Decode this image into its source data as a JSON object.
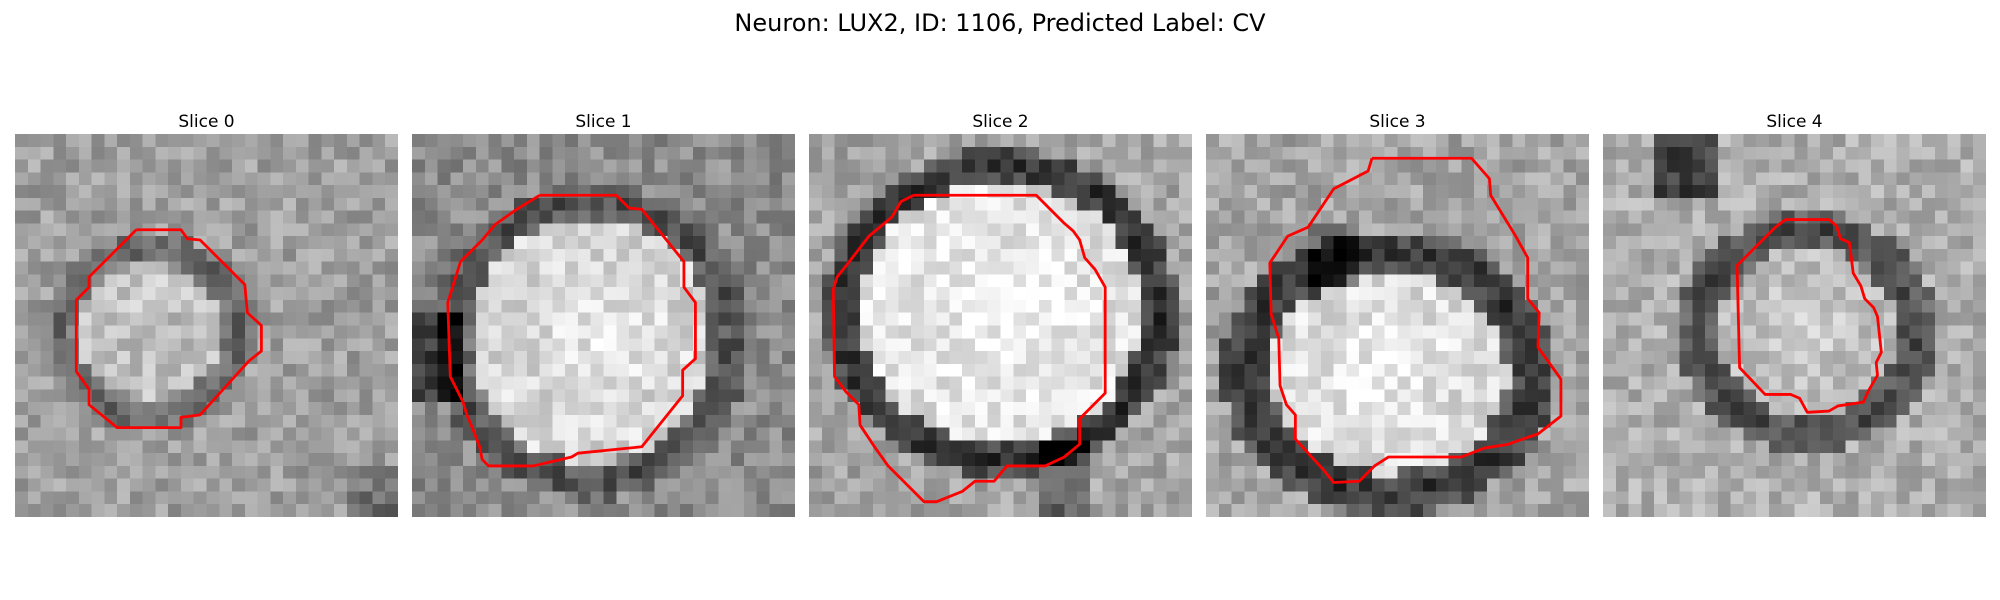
{
  "figure": {
    "title": "Neuron: LUX2, ID: 1106, Predicted Label: CV"
  },
  "panels": [
    {
      "title": "Slice 0",
      "seed": 11,
      "ring_shade": 95,
      "inner_shade": 190,
      "outer_shade": 160,
      "dark_corner": "bottom-right"
    },
    {
      "title": "Slice 1",
      "seed": 23,
      "ring_shade": 75,
      "inner_shade": 215,
      "outer_shade": 140,
      "dark_corner": "left"
    },
    {
      "title": "Slice 2",
      "seed": 37,
      "ring_shade": 45,
      "inner_shade": 225,
      "outer_shade": 165,
      "dark_corner": "bottom"
    },
    {
      "title": "Slice 3",
      "seed": 41,
      "ring_shade": 50,
      "inner_shade": 220,
      "outer_shade": 165,
      "dark_corner": "top-left"
    },
    {
      "title": "Slice 4",
      "seed": 59,
      "ring_shade": 70,
      "inner_shade": 190,
      "outer_shade": 175,
      "dark_corner": "top-left"
    }
  ],
  "colors": {
    "contour": "#ff0000",
    "background": "#ffffff"
  }
}
